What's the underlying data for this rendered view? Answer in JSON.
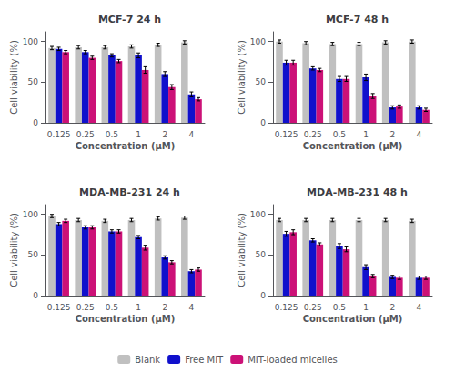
{
  "chart_data": [
    {
      "type": "bar",
      "title": "MCF-7 24 h",
      "xlabel": "Concentration (μM)",
      "ylabel": "Cell viability (%)",
      "categories": [
        "0.125",
        "0.25",
        "0.5",
        "1",
        "2",
        "4"
      ],
      "series": [
        {
          "name": "Blank",
          "color": "#C0C0C0",
          "values": [
            92,
            93,
            93,
            94,
            96,
            99
          ],
          "errors": [
            2,
            2,
            2,
            2,
            2,
            2
          ]
        },
        {
          "name": "Free MIT",
          "color": "#1010CC",
          "values": [
            91,
            87,
            83,
            83,
            60,
            35
          ],
          "errors": [
            2,
            2,
            2,
            3,
            3,
            3
          ]
        },
        {
          "name": "MIT-loaded micelles",
          "color": "#CC1177",
          "values": [
            87,
            80,
            76,
            65,
            44,
            29
          ],
          "errors": [
            2,
            2,
            2,
            4,
            3,
            2
          ]
        }
      ],
      "ylim": [
        0,
        112
      ],
      "yticks": [
        0,
        50,
        100
      ],
      "grid": false,
      "legend": "bottom"
    },
    {
      "type": "bar",
      "title": "MCF-7 48 h",
      "xlabel": "Concentration (μM)",
      "ylabel": "Cell viability (%)",
      "categories": [
        "0.125",
        "0.25",
        "0.5",
        "1",
        "2",
        "4"
      ],
      "series": [
        {
          "name": "Blank",
          "color": "#C0C0C0",
          "values": [
            100,
            98,
            97,
            97,
            99,
            100
          ],
          "errors": [
            2,
            2,
            2,
            2,
            2,
            2
          ]
        },
        {
          "name": "Free MIT",
          "color": "#1010CC",
          "values": [
            74,
            67,
            54,
            56,
            19,
            19
          ],
          "errors": [
            3,
            2,
            3,
            4,
            2,
            2
          ]
        },
        {
          "name": "MIT-loaded micelles",
          "color": "#CC1177",
          "values": [
            74,
            65,
            54,
            33,
            20,
            16
          ],
          "errors": [
            3,
            2,
            3,
            3,
            2,
            2
          ]
        }
      ],
      "ylim": [
        0,
        112
      ],
      "yticks": [
        0,
        50,
        100
      ],
      "grid": false,
      "legend": "bottom"
    },
    {
      "type": "bar",
      "title": "MDA-MB-231 24 h",
      "xlabel": "Concentration (μM)",
      "ylabel": "Cell viability (%)",
      "categories": [
        "0.125",
        "0.25",
        "0.5",
        "1",
        "2",
        "4"
      ],
      "series": [
        {
          "name": "Blank",
          "color": "#C0C0C0",
          "values": [
            98,
            93,
            92,
            93,
            95,
            96
          ],
          "errors": [
            2,
            2,
            2,
            2,
            2,
            2
          ]
        },
        {
          "name": "Free MIT",
          "color": "#1010CC",
          "values": [
            88,
            84,
            79,
            72,
            47,
            30
          ],
          "errors": [
            2,
            2,
            2,
            2,
            2,
            2
          ]
        },
        {
          "name": "MIT-loaded micelles",
          "color": "#CC1177",
          "values": [
            92,
            84,
            79,
            59,
            41,
            32
          ],
          "errors": [
            2,
            2,
            2,
            3,
            2,
            2
          ]
        }
      ],
      "ylim": [
        0,
        112
      ],
      "yticks": [
        0,
        50,
        100
      ],
      "grid": false,
      "legend": "bottom"
    },
    {
      "type": "bar",
      "title": "MDA-MB-231 48 h",
      "xlabel": "Concentration (μM)",
      "ylabel": "Cell viability (%)",
      "categories": [
        "0.125",
        "0.25",
        "0.5",
        "1",
        "2",
        "4"
      ],
      "series": [
        {
          "name": "Blank",
          "color": "#C0C0C0",
          "values": [
            93,
            93,
            93,
            93,
            93,
            92
          ],
          "errors": [
            2,
            2,
            2,
            2,
            2,
            2
          ]
        },
        {
          "name": "Free MIT",
          "color": "#1010CC",
          "values": [
            76,
            68,
            61,
            35,
            23,
            22
          ],
          "errors": [
            3,
            2,
            3,
            3,
            2,
            2
          ]
        },
        {
          "name": "MIT-loaded micelles",
          "color": "#CC1177",
          "values": [
            78,
            63,
            57,
            24,
            22,
            22
          ],
          "errors": [
            3,
            2,
            3,
            2,
            2,
            2
          ]
        }
      ],
      "ylim": [
        0,
        112
      ],
      "yticks": [
        0,
        50,
        100
      ],
      "grid": false,
      "legend": "bottom"
    }
  ]
}
